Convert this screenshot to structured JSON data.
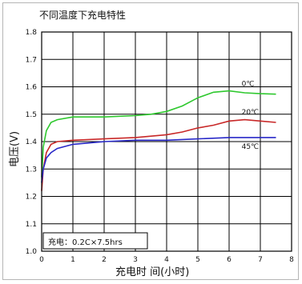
{
  "chart_data": {
    "type": "line",
    "title": "不同温度下充电特性",
    "xlabel": "充电时 间(小时)",
    "ylabel": "电压(V)",
    "xlim": [
      0,
      8
    ],
    "ylim": [
      1.0,
      1.8
    ],
    "x_ticks": [
      "0",
      "1",
      "2",
      "3",
      "4",
      "5",
      "6",
      "7",
      "8"
    ],
    "y_ticks": [
      "1.0",
      "1.1",
      "1.2",
      "1.3",
      "1.4",
      "1.5",
      "1.6",
      "1.7",
      "1.8"
    ],
    "grid": true,
    "annotation": "充电：0.2C×7.5hrs",
    "series": [
      {
        "name": "0℃",
        "color": "#2ec82e",
        "x": [
          0,
          0.05,
          0.15,
          0.3,
          0.5,
          1.0,
          2.0,
          3.0,
          3.5,
          4.0,
          4.5,
          5.0,
          5.5,
          6.0,
          6.5,
          7.0,
          7.5
        ],
        "y": [
          1.27,
          1.38,
          1.44,
          1.47,
          1.48,
          1.49,
          1.49,
          1.495,
          1.5,
          1.51,
          1.53,
          1.56,
          1.58,
          1.585,
          1.578,
          1.575,
          1.573
        ]
      },
      {
        "name": "20℃",
        "color": "#c82828",
        "x": [
          0,
          0.05,
          0.15,
          0.3,
          0.5,
          1.0,
          2.0,
          3.0,
          4.0,
          4.5,
          5.0,
          5.5,
          6.0,
          6.5,
          7.0,
          7.5
        ],
        "y": [
          1.22,
          1.3,
          1.36,
          1.39,
          1.4,
          1.405,
          1.41,
          1.415,
          1.425,
          1.435,
          1.45,
          1.46,
          1.475,
          1.48,
          1.475,
          1.47
        ]
      },
      {
        "name": "45℃",
        "color": "#2828c8",
        "x": [
          0,
          0.05,
          0.15,
          0.3,
          0.5,
          1.0,
          2.0,
          3.0,
          4.0,
          5.0,
          6.0,
          7.0,
          7.5
        ],
        "y": [
          1.25,
          1.3,
          1.34,
          1.36,
          1.375,
          1.39,
          1.4,
          1.405,
          1.405,
          1.41,
          1.415,
          1.415,
          1.415
        ]
      }
    ]
  }
}
